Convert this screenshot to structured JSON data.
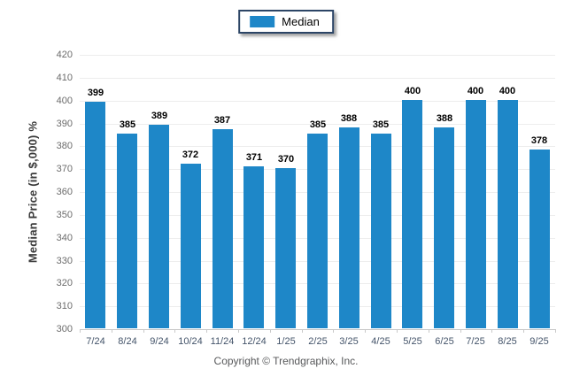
{
  "footer": {
    "copyright": "Copyright © Trendgraphix, Inc."
  },
  "colors": {
    "bar": "#1E87C8",
    "legend_border": "#2C4566",
    "grid_line": "#EDEDED",
    "axis_line": "#C9C9C9",
    "x_label": "#44546A",
    "y_label": "#6B6B6B",
    "value_label": "#000000",
    "axis_title": "#3A3A3A",
    "copyright": "#58595B"
  },
  "chart_data": {
    "type": "bar",
    "title": "",
    "categories": [
      "7/24",
      "8/24",
      "9/24",
      "10/24",
      "11/24",
      "12/24",
      "1/25",
      "2/25",
      "3/25",
      "4/25",
      "5/25",
      "6/25",
      "7/25",
      "8/25",
      "9/25"
    ],
    "series": [
      {
        "name": "Median",
        "color": "#1E87C8",
        "values": [
          399,
          385,
          389,
          372,
          387,
          371,
          370,
          385,
          388,
          385,
          400,
          388,
          400,
          400,
          378
        ]
      }
    ],
    "xlabel": "",
    "ylabel": "Median Price (in $,000) %",
    "ylim": [
      300,
      420
    ],
    "ytick_step": 10,
    "grid": true,
    "legend_position": "top-center",
    "value_labels": true
  }
}
